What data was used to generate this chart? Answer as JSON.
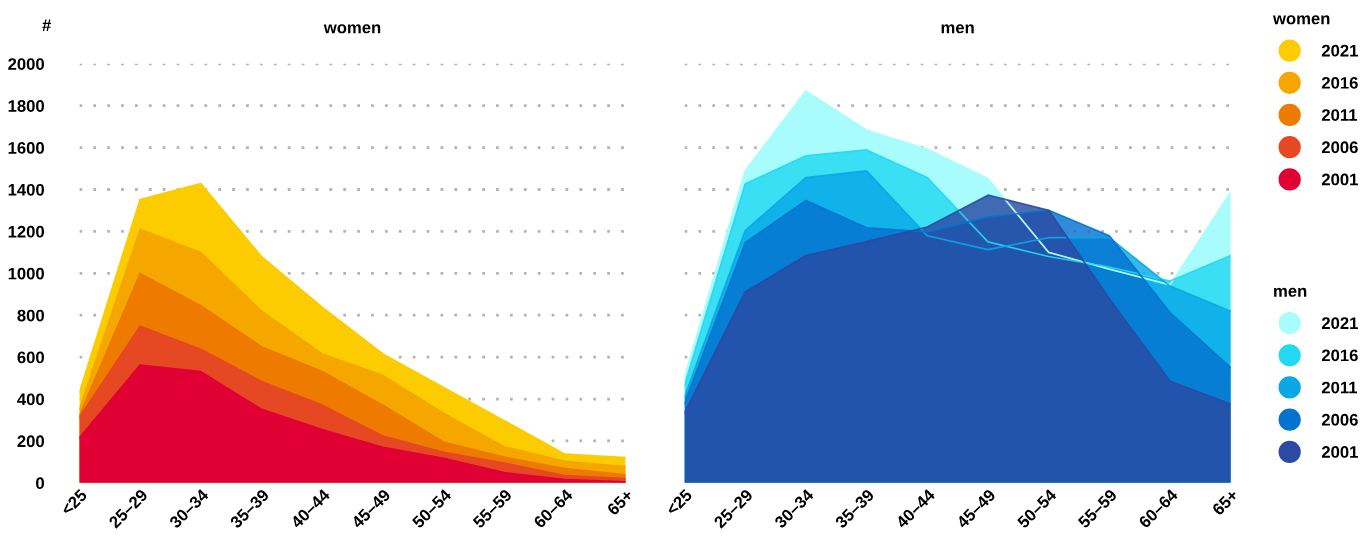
{
  "chart_data": [
    {
      "type": "area",
      "title": "women",
      "ylabel": "#",
      "legend_title": "women",
      "legend": "right",
      "grid": "y",
      "ylim": [
        0,
        2000
      ],
      "yticks": [
        0,
        200,
        400,
        600,
        800,
        1000,
        1200,
        1400,
        1600,
        1800,
        2000
      ],
      "categories": [
        "<25",
        "25–29",
        "30–34",
        "35–39",
        "40–44",
        "45–49",
        "50–54",
        "55–59",
        "60–64",
        "65+"
      ],
      "series": [
        {
          "name": "2021",
          "color": "#fdcc00",
          "values": [
            433,
            1352,
            1428,
            1080,
            839,
            615,
            455,
            297,
            137,
            121
          ]
        },
        {
          "name": "2016",
          "color": "#f5a700",
          "values": [
            351,
            1210,
            1099,
            820,
            615,
            513,
            332,
            172,
            103,
            78
          ]
        },
        {
          "name": "2011",
          "color": "#ef7a00",
          "values": [
            322,
            999,
            845,
            650,
            531,
            371,
            195,
            123,
            68,
            39
          ]
        },
        {
          "name": "2006",
          "color": "#e64823",
          "values": [
            312,
            747,
            638,
            484,
            371,
            224,
            146,
            94,
            35,
            20
          ]
        },
        {
          "name": "2001",
          "color": "#e10034",
          "values": [
            215,
            562,
            531,
            351,
            254,
            170,
            117,
            49,
            16,
            5
          ]
        }
      ]
    },
    {
      "type": "area",
      "title": "men",
      "legend_title": "men",
      "legend": "right",
      "grid": "y",
      "tick_labels": "x",
      "ylim": [
        0,
        2000
      ],
      "yticks": [
        0,
        200,
        400,
        600,
        800,
        1000,
        1200,
        1400,
        1600,
        1800,
        2000
      ],
      "categories": [
        "<25",
        "25–29",
        "30–34",
        "35–39",
        "40–44",
        "45–49",
        "50–54",
        "55–59",
        "60–64",
        "65+"
      ],
      "series": [
        {
          "name": "2021",
          "color": "#a8fcfc",
          "values": [
            503,
            1489,
            1870,
            1683,
            1592,
            1452,
            1100,
            1020,
            945,
            1386
          ]
        },
        {
          "name": "2016",
          "color": "#22d8f2",
          "values": [
            465,
            1427,
            1561,
            1589,
            1457,
            1150,
            1080,
            1030,
            963,
            1085
          ]
        },
        {
          "name": "2011",
          "color": "#08a8e6",
          "values": [
            410,
            1204,
            1457,
            1489,
            1179,
            1113,
            1170,
            1170,
            939,
            819
          ]
        },
        {
          "name": "2006",
          "color": "#0373cf",
          "values": [
            380,
            1146,
            1348,
            1217,
            1198,
            1268,
            1301,
            1179,
            813,
            550
          ]
        },
        {
          "name": "2001",
          "color": "#2a4aa3",
          "values": [
            334,
            911,
            1085,
            1151,
            1221,
            1373,
            1301,
            879,
            485,
            376
          ]
        }
      ]
    }
  ]
}
